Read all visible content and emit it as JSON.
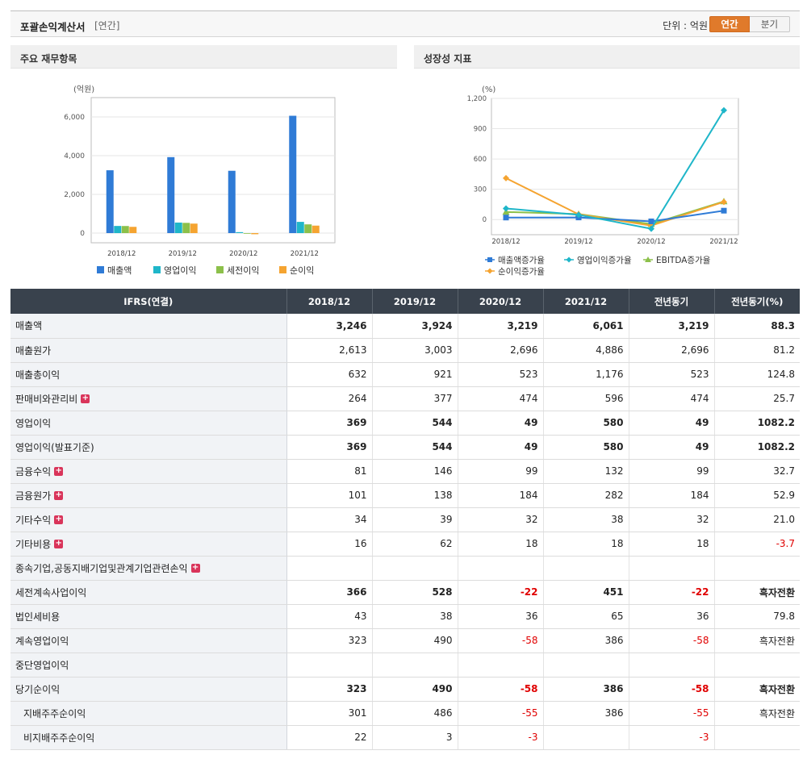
{
  "header": {
    "title": "포괄손익계산서",
    "subtitle": "[연간]",
    "unit_label": "단위 : 억원",
    "toggle": [
      "연간",
      "분기"
    ]
  },
  "colors": {
    "accent": "#e07a2b",
    "negative": "#e00000",
    "series": [
      "#2f7bd6",
      "#1fb6c9",
      "#8cc04a",
      "#f5a431"
    ]
  },
  "chart_data": [
    {
      "type": "bar",
      "title": "주요 재무항목",
      "ylabel": "(억원)",
      "xlabel": "",
      "categories": [
        "2018/12",
        "2019/12",
        "2020/12",
        "2021/12"
      ],
      "ylim": [
        -500,
        7000
      ],
      "yticks": [
        0,
        2000,
        4000,
        6000
      ],
      "ytick_labels": [
        "0",
        "2,000",
        "4,000",
        "6,000"
      ],
      "grid": true,
      "legend": "bottom",
      "series": [
        {
          "name": "매출액",
          "values": [
            3246,
            3924,
            3219,
            6061
          ]
        },
        {
          "name": "영업이익",
          "values": [
            369,
            544,
            49,
            580
          ]
        },
        {
          "name": "세전이익",
          "values": [
            366,
            528,
            -22,
            451
          ]
        },
        {
          "name": "순이익",
          "values": [
            323,
            490,
            -58,
            386
          ]
        }
      ]
    },
    {
      "type": "line",
      "title": "성장성 지표",
      "ylabel": "(%)",
      "xlabel": "",
      "categories": [
        "2018/12",
        "2019/12",
        "2020/12",
        "2021/12"
      ],
      "ylim": [
        -150,
        1200
      ],
      "yticks": [
        0,
        300,
        600,
        900,
        1200
      ],
      "ytick_labels": [
        "0",
        "300",
        "600",
        "900",
        "1,200"
      ],
      "grid": true,
      "legend": "bottom",
      "series": [
        {
          "name": "매출액증가율",
          "values": [
            20,
            21,
            -18,
            88
          ]
        },
        {
          "name": "영업이익증가율",
          "values": [
            110,
            47,
            -91,
            1082
          ]
        },
        {
          "name": "EBITDA증가율",
          "values": [
            75,
            55,
            -45,
            180
          ]
        },
        {
          "name": "순이익증가율",
          "values": [
            410,
            52,
            -60,
            175
          ]
        }
      ]
    }
  ],
  "table": {
    "headers": [
      "IFRS(연결)",
      "2018/12",
      "2019/12",
      "2020/12",
      "2021/12",
      "전년동기",
      "전년동기(%)"
    ],
    "rows": [
      {
        "label": "매출액",
        "values": [
          "3,246",
          "3,924",
          "3,219",
          "6,061",
          "3,219",
          "88.3"
        ],
        "bold": true,
        "plus": false
      },
      {
        "label": "매출원가",
        "values": [
          "2,613",
          "3,003",
          "2,696",
          "4,886",
          "2,696",
          "81.2"
        ],
        "bold": false,
        "plus": false
      },
      {
        "label": "매출총이익",
        "values": [
          "632",
          "921",
          "523",
          "1,176",
          "523",
          "124.8"
        ],
        "bold": false,
        "plus": false
      },
      {
        "label": "판매비와관리비",
        "values": [
          "264",
          "377",
          "474",
          "596",
          "474",
          "25.7"
        ],
        "bold": false,
        "plus": true
      },
      {
        "label": "영업이익",
        "values": [
          "369",
          "544",
          "49",
          "580",
          "49",
          "1082.2"
        ],
        "bold": true,
        "plus": false,
        "sep": true
      },
      {
        "label": "영업이익(발표기준)",
        "values": [
          "369",
          "544",
          "49",
          "580",
          "49",
          "1082.2"
        ],
        "bold": true,
        "plus": false
      },
      {
        "label": "금융수익",
        "values": [
          "81",
          "146",
          "99",
          "132",
          "99",
          "32.7"
        ],
        "bold": false,
        "plus": true
      },
      {
        "label": "금융원가",
        "values": [
          "101",
          "138",
          "184",
          "282",
          "184",
          "52.9"
        ],
        "bold": false,
        "plus": true
      },
      {
        "label": "기타수익",
        "values": [
          "34",
          "39",
          "32",
          "38",
          "32",
          "21.0"
        ],
        "bold": false,
        "plus": true
      },
      {
        "label": "기타비용",
        "values": [
          "16",
          "62",
          "18",
          "18",
          "18",
          "-3.7"
        ],
        "bold": false,
        "plus": true
      },
      {
        "label": "종속기업,공동지배기업및관계기업관련손익",
        "values": [
          "",
          "",
          "",
          "",
          "",
          ""
        ],
        "bold": false,
        "plus": true
      },
      {
        "label": "세전계속사업이익",
        "values": [
          "366",
          "528",
          "-22",
          "451",
          "-22",
          "흑자전환"
        ],
        "bold": true,
        "plus": false
      },
      {
        "label": "법인세비용",
        "values": [
          "43",
          "38",
          "36",
          "65",
          "36",
          "79.8"
        ],
        "bold": false,
        "plus": false
      },
      {
        "label": "계속영업이익",
        "values": [
          "323",
          "490",
          "-58",
          "386",
          "-58",
          "흑자전환"
        ],
        "bold": false,
        "plus": false
      },
      {
        "label": "중단영업이익",
        "values": [
          "",
          "",
          "",
          "",
          "",
          ""
        ],
        "bold": false,
        "plus": false
      },
      {
        "label": "당기순이익",
        "values": [
          "323",
          "490",
          "-58",
          "386",
          "-58",
          "흑자전환"
        ],
        "bold": true,
        "plus": false
      },
      {
        "label": "지배주주순이익",
        "values": [
          "301",
          "486",
          "-55",
          "386",
          "-55",
          "흑자전환"
        ],
        "bold": false,
        "plus": false,
        "indent": true
      },
      {
        "label": "비지배주주순이익",
        "values": [
          "22",
          "3",
          "-3",
          "",
          "-3",
          ""
        ],
        "bold": false,
        "plus": false,
        "indent": true
      }
    ]
  }
}
